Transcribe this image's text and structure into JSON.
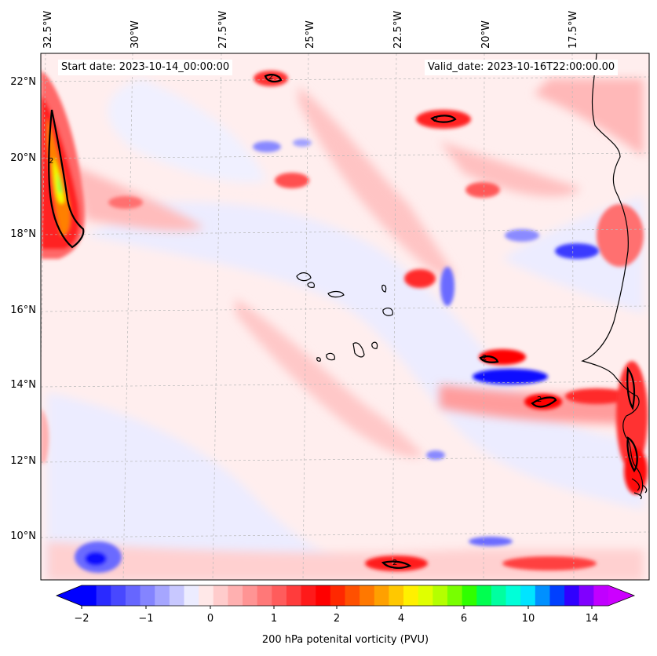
{
  "header": {
    "start_date": "Start date: 2023-10-14_00:00:00",
    "valid_date": "Valid_date: 2023-10-16T22:00:00.00"
  },
  "longitude_labels": [
    "32.5°W",
    "30°W",
    "27.5°W",
    "25°W",
    "22.5°W",
    "20°W",
    "17.5°W"
  ],
  "latitude_labels": [
    "22°N",
    "20°N",
    "18°N",
    "16°N",
    "14°N",
    "12°N",
    "10°N"
  ],
  "colorbar": {
    "label": "200 hPa potenital vorticity (PVU)",
    "ticks": [
      "−2",
      "−1",
      "0",
      "1",
      "2",
      "4",
      "6",
      "10",
      "14"
    ],
    "colors": [
      "#0000ff",
      "#2a2aff",
      "#4848ff",
      "#6666ff",
      "#8484ff",
      "#a6a6ff",
      "#c8c8ff",
      "#ececff",
      "#ffe8e8",
      "#ffcccc",
      "#ffb0b0",
      "#ff9494",
      "#ff7878",
      "#ff5c5c",
      "#ff3c3c",
      "#ff1a1a",
      "#ff0000",
      "#ff2800",
      "#ff5000",
      "#ff7800",
      "#ffa000",
      "#ffc800",
      "#fff000",
      "#e0ff00",
      "#b4ff00",
      "#78ff00",
      "#30ff00",
      "#00ff50",
      "#00ffa0",
      "#00ffd8",
      "#00e4ff",
      "#0090ff",
      "#0040ff",
      "#3000ff",
      "#8000ff",
      "#c000ff"
    ],
    "contour_label": "2"
  },
  "chart_data": {
    "type": "heatmap",
    "variable": "200 hPa potential vorticity",
    "units": "PVU",
    "lon_range": [
      -33.0,
      -16.0
    ],
    "lat_range": [
      9.0,
      22.8
    ],
    "contour_levels": [
      2
    ]
  }
}
